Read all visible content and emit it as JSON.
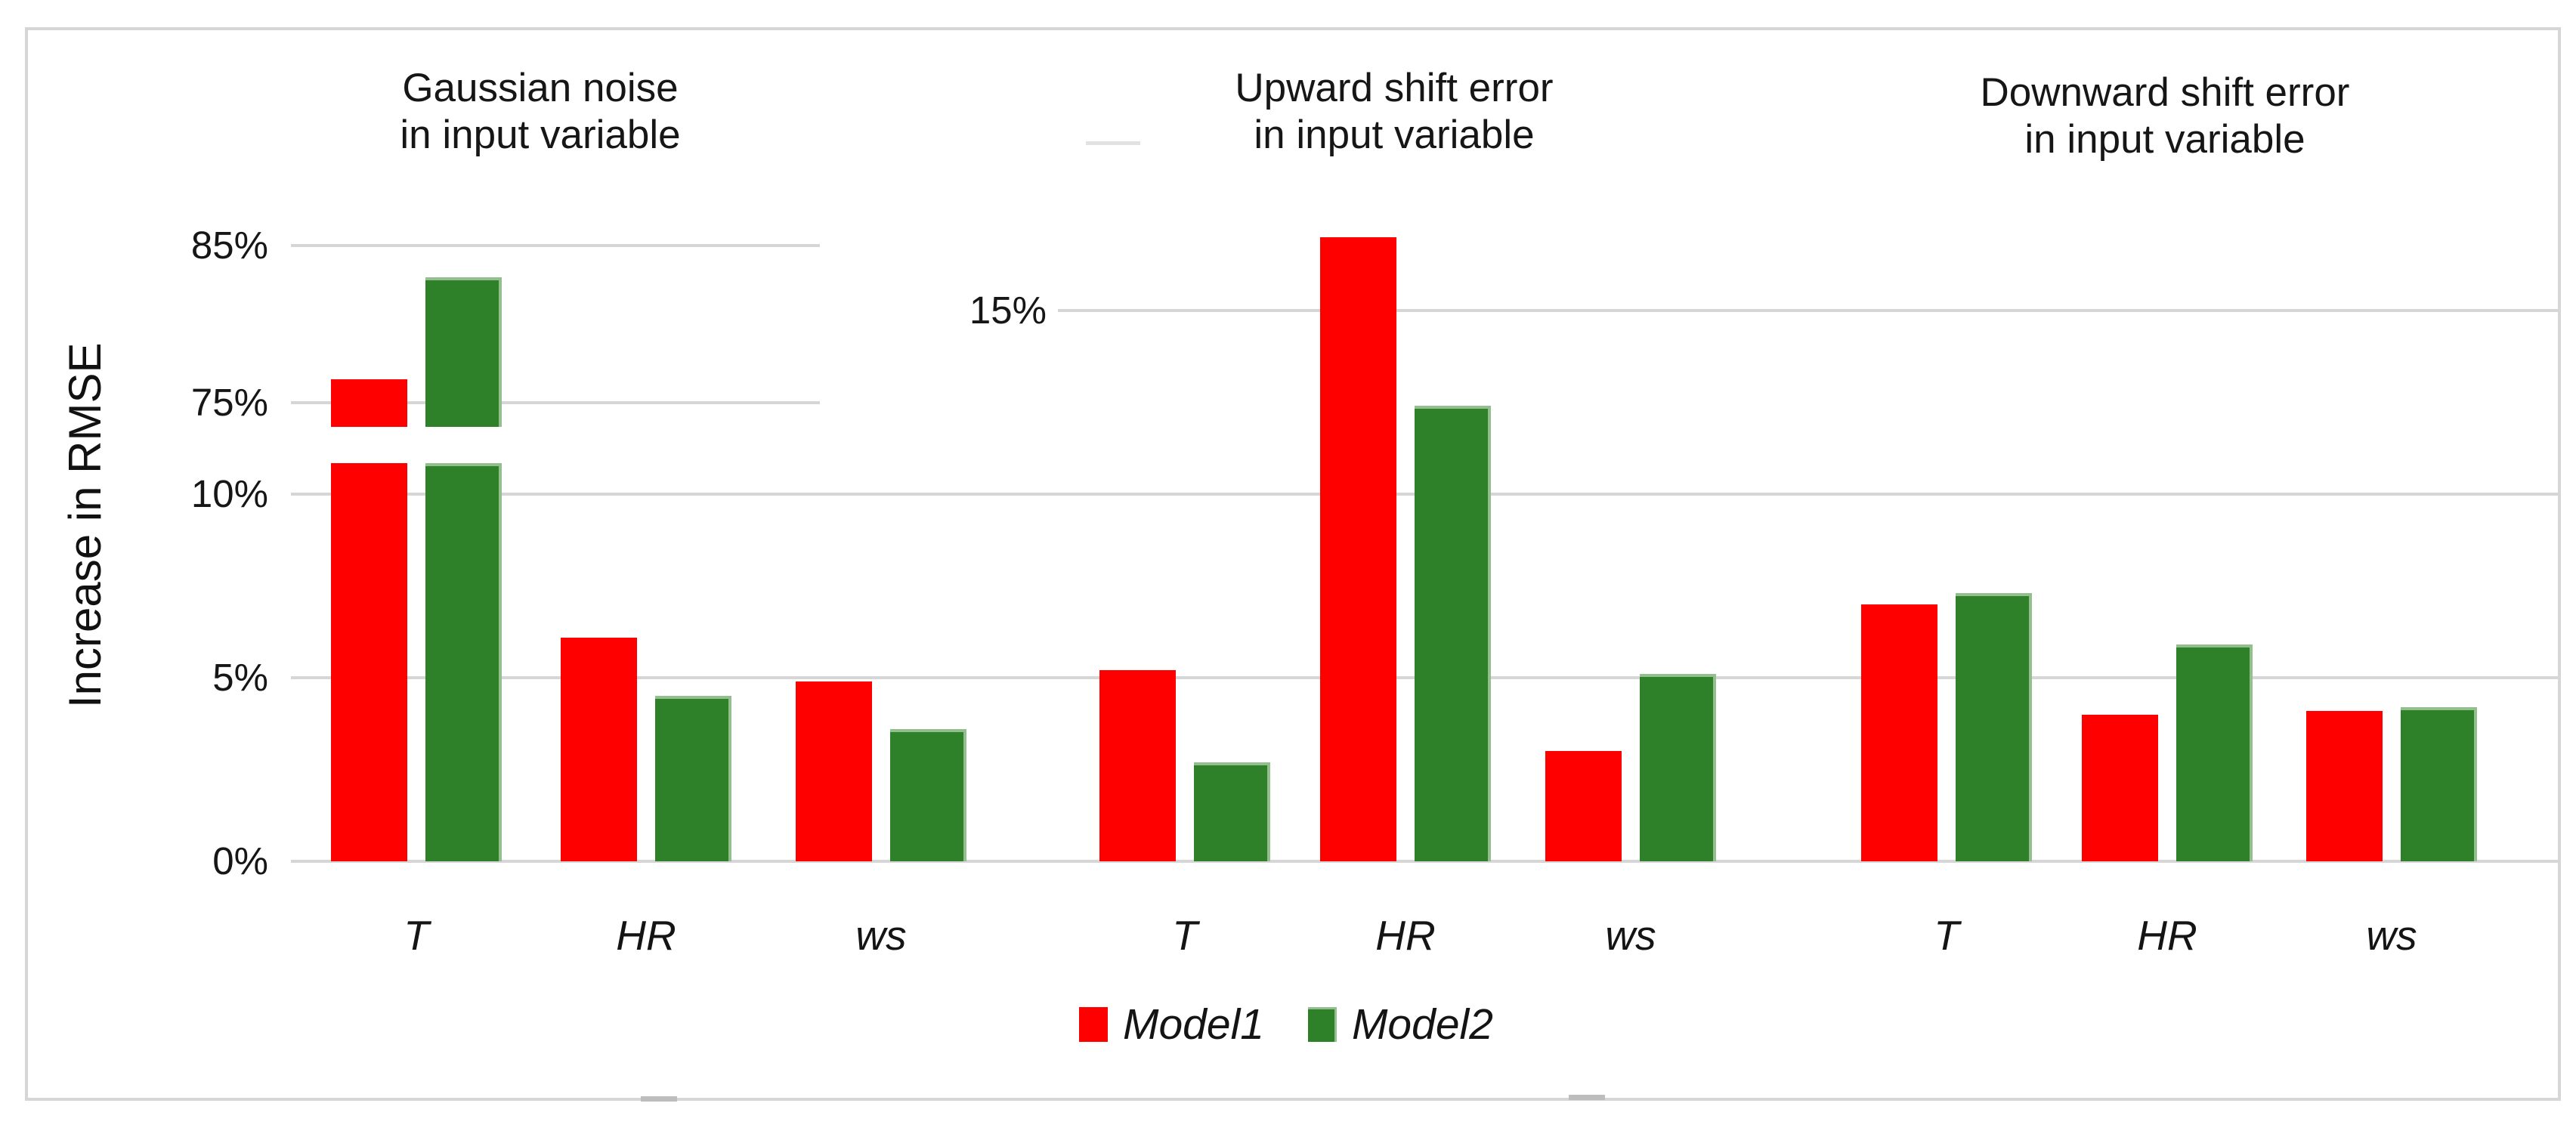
{
  "figure": {
    "kind": "three-panel bar chart figure with broken y-axis",
    "background": "#ffffff",
    "frame_color": "#d6d6d6"
  },
  "chart_data": {
    "type": "bar",
    "title": "",
    "ylabel": "Increase in RMSE",
    "categories": [
      "T",
      "HR",
      "ws"
    ],
    "series_names": [
      "Model1",
      "Model2"
    ],
    "colors": {
      "Model1": "#FE0000",
      "Model2": "#2E8128"
    },
    "grid": "horizontal gridlines on, light gray",
    "legend_position": "bottom center",
    "y_axis": {
      "unit": "%",
      "broken": true,
      "lower_ticks": [
        0,
        5,
        10
      ],
      "middle_tick_panels_2_3": 15,
      "upper_ticks_panel_1": [
        75,
        85
      ],
      "break_gap_shown_between": [
        11,
        73.5
      ]
    },
    "tick_labels": [
      "85%",
      "75%",
      "15%",
      "10%",
      "5%",
      "0%"
    ],
    "panels": [
      {
        "title_line1": "Gaussian noise",
        "title_line2": "in input variable",
        "categories": [
          "T",
          "HR",
          "ws"
        ],
        "series": [
          {
            "name": "Model1",
            "values": [
              76.5,
              6.1,
              4.9
            ]
          },
          {
            "name": "Model2",
            "values": [
              83,
              4.5,
              3.6
            ]
          }
        ],
        "note": "T bars exceed the axis break and are drawn split at the break"
      },
      {
        "title_line1": "Upward shift error",
        "title_line2": "in input variable",
        "categories": [
          "T",
          "HR",
          "ws"
        ],
        "series": [
          {
            "name": "Model1",
            "values": [
              5.2,
              17,
              3.0
            ]
          },
          {
            "name": "Model2",
            "values": [
              2.7,
              12.4,
              5.1
            ]
          }
        ]
      },
      {
        "title_line1": "Downward shift error",
        "title_line2": "in input variable",
        "categories": [
          "T",
          "HR",
          "ws"
        ],
        "series": [
          {
            "name": "Model1",
            "values": [
              7.0,
              4.0,
              4.1
            ]
          },
          {
            "name": "Model2",
            "values": [
              7.3,
              5.9,
              4.2
            ]
          }
        ]
      }
    ],
    "legend": [
      {
        "label": "Model1",
        "color": "#FE0000"
      },
      {
        "label": "Model2",
        "color": "#2E8128"
      }
    ]
  }
}
